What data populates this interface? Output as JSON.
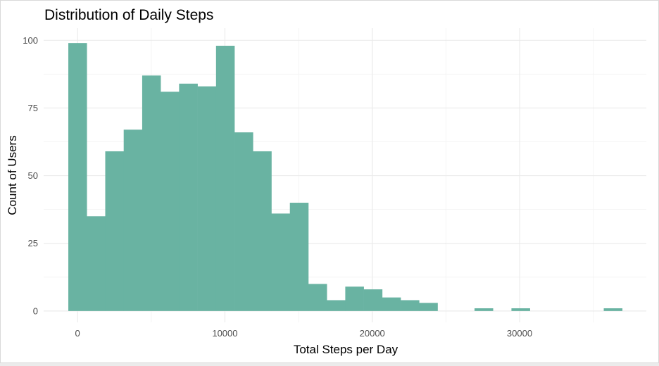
{
  "chart_data": {
    "type": "bar",
    "title": "Distribution of Daily Steps",
    "xlabel": "Total Steps per Day",
    "ylabel": "Count of Users",
    "bin_width": 1253,
    "bins": [
      {
        "x0": -626,
        "x1": 627,
        "count": 99
      },
      {
        "x0": 627,
        "x1": 1880,
        "count": 35
      },
      {
        "x0": 1880,
        "x1": 3133,
        "count": 59
      },
      {
        "x0": 3133,
        "x1": 4386,
        "count": 67
      },
      {
        "x0": 4386,
        "x1": 5639,
        "count": 87
      },
      {
        "x0": 5639,
        "x1": 6892,
        "count": 81
      },
      {
        "x0": 6892,
        "x1": 8145,
        "count": 84
      },
      {
        "x0": 8145,
        "x1": 9398,
        "count": 83
      },
      {
        "x0": 9398,
        "x1": 10651,
        "count": 98
      },
      {
        "x0": 10651,
        "x1": 11904,
        "count": 66
      },
      {
        "x0": 11904,
        "x1": 13157,
        "count": 59
      },
      {
        "x0": 13157,
        "x1": 14410,
        "count": 36
      },
      {
        "x0": 14410,
        "x1": 15663,
        "count": 40
      },
      {
        "x0": 15663,
        "x1": 16916,
        "count": 10
      },
      {
        "x0": 16916,
        "x1": 18169,
        "count": 4
      },
      {
        "x0": 18169,
        "x1": 19422,
        "count": 9
      },
      {
        "x0": 19422,
        "x1": 20675,
        "count": 8
      },
      {
        "x0": 20675,
        "x1": 21928,
        "count": 5
      },
      {
        "x0": 21928,
        "x1": 23181,
        "count": 4
      },
      {
        "x0": 23181,
        "x1": 24434,
        "count": 3
      },
      {
        "x0": 24434,
        "x1": 25687,
        "count": 0
      },
      {
        "x0": 25687,
        "x1": 26940,
        "count": 0
      },
      {
        "x0": 26940,
        "x1": 28193,
        "count": 1
      },
      {
        "x0": 28193,
        "x1": 29446,
        "count": 0
      },
      {
        "x0": 29446,
        "x1": 30699,
        "count": 1
      },
      {
        "x0": 30699,
        "x1": 31952,
        "count": 0
      },
      {
        "x0": 31952,
        "x1": 33205,
        "count": 0
      },
      {
        "x0": 33205,
        "x1": 34458,
        "count": 0
      },
      {
        "x0": 34458,
        "x1": 35711,
        "count": 0
      },
      {
        "x0": 35711,
        "x1": 36964,
        "count": 1
      }
    ],
    "xlim": [
      -2300,
      38600
    ],
    "ylim": [
      -4.2,
      104.5
    ],
    "x_ticks": [
      0,
      10000,
      20000,
      30000
    ],
    "x_tick_labels": [
      "0",
      "10000",
      "20000",
      "30000"
    ],
    "x_minor_ticks": [
      5000,
      15000,
      25000,
      35000
    ],
    "y_ticks": [
      0,
      25,
      50,
      75,
      100
    ],
    "y_tick_labels": [
      "0",
      "25",
      "50",
      "75",
      "100"
    ],
    "y_minor_ticks": [
      12.5,
      37.5,
      62.5,
      87.5
    ],
    "grid": true,
    "legend": "none",
    "colors": {
      "bar_fill": "#69b3a2",
      "grid_major": "#ebebeb",
      "grid_minor": "#f4f4f4",
      "tick_text": "#4d4d4d"
    }
  }
}
